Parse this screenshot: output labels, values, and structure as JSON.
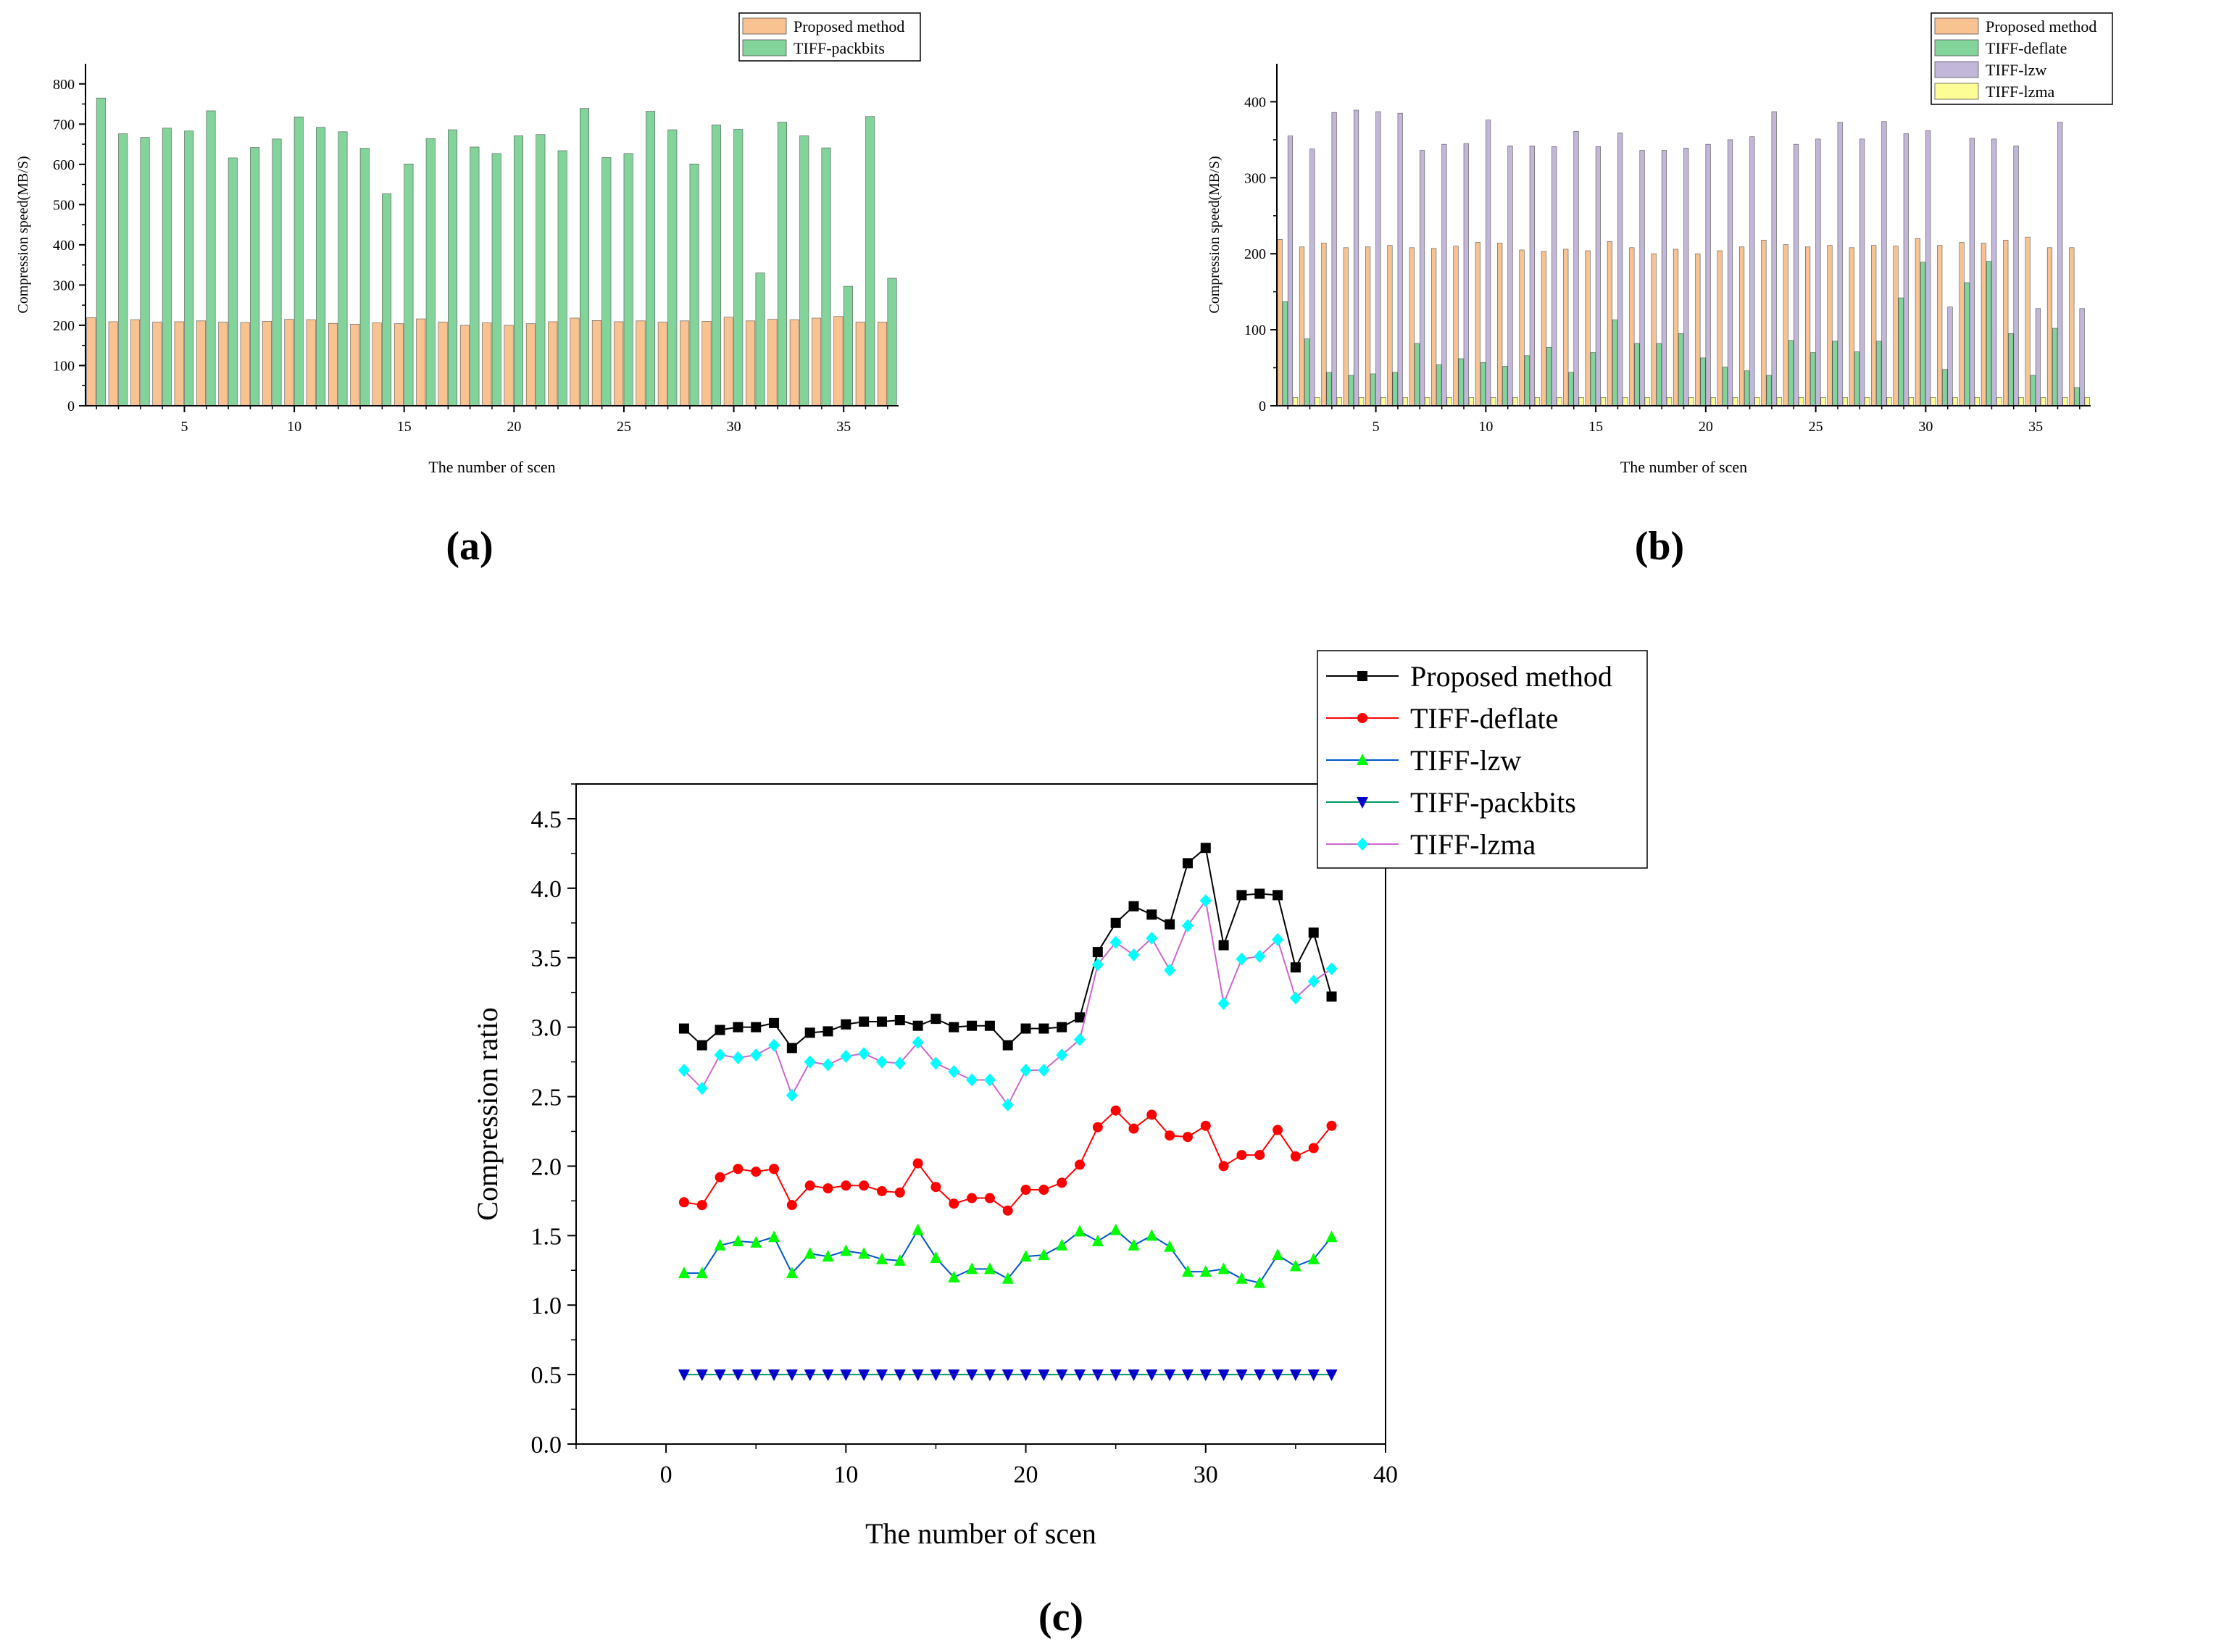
{
  "chart_data": [
    {
      "id": "a",
      "type": "bar",
      "panel_label": "(a)",
      "xlabel": "The number of scen",
      "ylabel": "Compression speed(MB/S)",
      "ylim": [
        0,
        850
      ],
      "yticks": [
        0,
        100,
        200,
        300,
        400,
        500,
        600,
        700,
        800
      ],
      "xticks": [
        5,
        10,
        15,
        20,
        25,
        30,
        35
      ],
      "x": [
        1,
        2,
        3,
        4,
        5,
        6,
        7,
        8,
        9,
        10,
        11,
        12,
        13,
        14,
        15,
        16,
        17,
        18,
        19,
        20,
        21,
        22,
        23,
        24,
        25,
        26,
        27,
        28,
        29,
        30,
        31,
        32,
        33,
        34,
        35,
        36,
        37
      ],
      "legend_position": "top-right",
      "series": [
        {
          "name": "Proposed method",
          "color": "#f8c291",
          "values": [
            219,
            209,
            214,
            208,
            209,
            211,
            208,
            207,
            210,
            215,
            214,
            205,
            203,
            206,
            204,
            216,
            208,
            200,
            206,
            200,
            204,
            209,
            218,
            212,
            209,
            211,
            208,
            211,
            210,
            220,
            211,
            215,
            214,
            218,
            222,
            208,
            208
          ]
        },
        {
          "name": "TIFF-packbits",
          "color": "#82d49b",
          "values": [
            765,
            676,
            667,
            690,
            683,
            733,
            616,
            642,
            663,
            718,
            692,
            681,
            640,
            527,
            601,
            664,
            686,
            643,
            627,
            671,
            674,
            634,
            739,
            617,
            627,
            732,
            686,
            601,
            698,
            687,
            330,
            705,
            671,
            641,
            297,
            719,
            317
          ]
        }
      ]
    },
    {
      "id": "b",
      "type": "bar",
      "panel_label": "(b)",
      "xlabel": "The number of scen",
      "ylabel": "Compression speed(MB/S)",
      "ylim": [
        0,
        450
      ],
      "yticks": [
        0,
        100,
        200,
        300,
        400
      ],
      "xticks": [
        5,
        10,
        15,
        20,
        25,
        30,
        35
      ],
      "x": [
        1,
        2,
        3,
        4,
        5,
        6,
        7,
        8,
        9,
        10,
        11,
        12,
        13,
        14,
        15,
        16,
        17,
        18,
        19,
        20,
        21,
        22,
        23,
        24,
        25,
        26,
        27,
        28,
        29,
        30,
        31,
        32,
        33,
        34,
        35,
        36,
        37
      ],
      "legend_position": "top-right",
      "series": [
        {
          "name": "Proposed method",
          "color": "#f8c291",
          "values": [
            219,
            209,
            214,
            208,
            209,
            211,
            208,
            207,
            210,
            215,
            214,
            205,
            203,
            206,
            204,
            216,
            208,
            200,
            206,
            200,
            204,
            209,
            218,
            212,
            209,
            211,
            208,
            211,
            210,
            220,
            211,
            215,
            214,
            218,
            222,
            208,
            208
          ]
        },
        {
          "name": "TIFF-deflate",
          "color": "#82d49b",
          "values": [
            137,
            88,
            44,
            40,
            42,
            44,
            82,
            54,
            62,
            57,
            52,
            66,
            77,
            44,
            70,
            113,
            82,
            82,
            95,
            63,
            51,
            46,
            40,
            86,
            70,
            85,
            71,
            85,
            142,
            189,
            48,
            162,
            190,
            95,
            40,
            102,
            24
          ]
        },
        {
          "name": "TIFF-lzw",
          "color": "#c3b7d9",
          "values": [
            355,
            338,
            386,
            389,
            387,
            385,
            336,
            344,
            345,
            376,
            342,
            342,
            341,
            361,
            341,
            359,
            336,
            336,
            339,
            344,
            350,
            354,
            387,
            344,
            351,
            373,
            351,
            374,
            358,
            362,
            130,
            352,
            351,
            342,
            128,
            373,
            128
          ]
        },
        {
          "name": "TIFF-lzma",
          "color": "#fdfd96",
          "values": [
            11,
            11,
            11,
            11,
            11,
            11,
            11,
            11,
            11,
            11,
            11,
            11,
            11,
            11,
            11,
            11,
            11,
            11,
            11,
            11,
            11,
            11,
            11,
            11,
            11,
            11,
            11,
            11,
            11,
            11,
            11,
            11,
            11,
            11,
            11,
            11,
            11
          ]
        }
      ]
    },
    {
      "id": "c",
      "type": "line",
      "panel_label": "(c)",
      "xlabel": "The number of scen",
      "ylabel": "Compression ratio",
      "xlim": [
        -5,
        40
      ],
      "ylim": [
        0,
        4.75
      ],
      "xticks": [
        0,
        10,
        20,
        30,
        40
      ],
      "yticks": [
        0.0,
        0.5,
        1.0,
        1.5,
        2.0,
        2.5,
        3.0,
        3.5,
        4.0,
        4.5
      ],
      "ytick_labels": [
        "0.0",
        "0.5",
        "1.0",
        "1.5",
        "2.0",
        "2.5",
        "3.0",
        "3.5",
        "4.0",
        "4.5"
      ],
      "x": [
        1,
        2,
        3,
        4,
        5,
        6,
        7,
        8,
        9,
        10,
        11,
        12,
        13,
        14,
        15,
        16,
        17,
        18,
        19,
        20,
        21,
        22,
        23,
        24,
        25,
        26,
        27,
        28,
        29,
        30,
        31,
        32,
        33,
        34,
        35,
        36,
        37
      ],
      "legend_position": "top-right",
      "series": [
        {
          "name": "Proposed method",
          "line_color": "#000000",
          "marker_color": "#000000",
          "marker": "square",
          "values": [
            2.99,
            2.87,
            2.98,
            3.0,
            3.0,
            3.03,
            2.85,
            2.96,
            2.97,
            3.02,
            3.04,
            3.04,
            3.05,
            3.01,
            3.06,
            3.0,
            3.01,
            3.01,
            2.87,
            2.99,
            2.99,
            3.0,
            3.07,
            3.54,
            3.75,
            3.87,
            3.81,
            3.74,
            4.18,
            4.29,
            3.59,
            3.95,
            3.96,
            3.95,
            3.43,
            3.68,
            3.22
          ]
        },
        {
          "name": "TIFF-deflate",
          "line_color": "#ff0000",
          "marker_color": "#ff0000",
          "marker": "circle",
          "values": [
            1.74,
            1.72,
            1.92,
            1.98,
            1.96,
            1.98,
            1.72,
            1.86,
            1.84,
            1.86,
            1.86,
            1.82,
            1.81,
            2.02,
            1.85,
            1.73,
            1.77,
            1.77,
            1.68,
            1.83,
            1.83,
            1.88,
            2.01,
            2.28,
            2.4,
            2.27,
            2.37,
            2.22,
            2.21,
            2.29,
            2.0,
            2.08,
            2.08,
            2.26,
            2.07,
            2.13,
            2.29
          ]
        },
        {
          "name": "TIFF-lzw",
          "line_color": "#0055cc",
          "marker_color": "#00ff00",
          "marker": "triangle-up",
          "values": [
            1.23,
            1.23,
            1.43,
            1.46,
            1.45,
            1.49,
            1.23,
            1.37,
            1.35,
            1.39,
            1.37,
            1.33,
            1.32,
            1.54,
            1.34,
            1.2,
            1.26,
            1.26,
            1.19,
            1.35,
            1.36,
            1.43,
            1.53,
            1.46,
            1.54,
            1.43,
            1.5,
            1.42,
            1.24,
            1.24,
            1.26,
            1.19,
            1.16,
            1.36,
            1.28,
            1.33,
            1.49
          ]
        },
        {
          "name": "TIFF-packbits",
          "line_color": "#009966",
          "marker_color": "#0000cc",
          "marker": "triangle-down",
          "values": [
            0.5,
            0.5,
            0.5,
            0.5,
            0.5,
            0.5,
            0.5,
            0.5,
            0.5,
            0.5,
            0.5,
            0.5,
            0.5,
            0.5,
            0.5,
            0.5,
            0.5,
            0.5,
            0.5,
            0.5,
            0.5,
            0.5,
            0.5,
            0.5,
            0.5,
            0.5,
            0.5,
            0.5,
            0.5,
            0.5,
            0.5,
            0.5,
            0.5,
            0.5,
            0.5,
            0.5,
            0.5
          ]
        },
        {
          "name": "TIFF-lzma",
          "line_color": "#cc66cc",
          "marker_color": "#00ffff",
          "marker": "diamond",
          "values": [
            2.69,
            2.56,
            2.8,
            2.78,
            2.8,
            2.87,
            2.51,
            2.75,
            2.73,
            2.79,
            2.81,
            2.75,
            2.74,
            2.89,
            2.74,
            2.68,
            2.62,
            2.62,
            2.44,
            2.69,
            2.69,
            2.8,
            2.91,
            3.45,
            3.61,
            3.52,
            3.64,
            3.41,
            3.73,
            3.91,
            3.17,
            3.49,
            3.51,
            3.63,
            3.21,
            3.33,
            3.42
          ]
        }
      ]
    }
  ]
}
